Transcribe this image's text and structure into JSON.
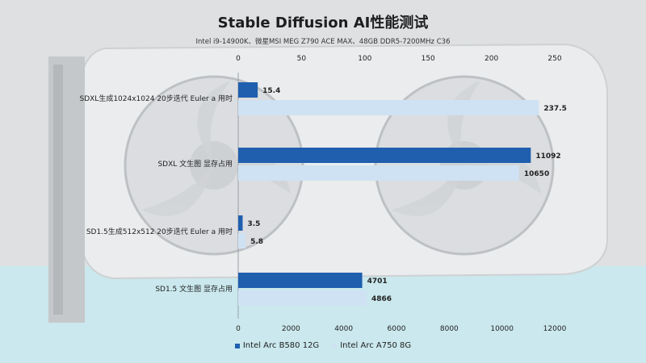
{
  "colors": {
    "b580": "#1f5fae",
    "a750": "#cfe2f3"
  },
  "chart_data": {
    "type": "bar",
    "orientation": "horizontal",
    "title": "Stable Diffusion AI性能测试",
    "subtitle": "Intel i9-14900K、微星MSI  MEG Z790 ACE MAX、48GB DDR5-7200MHz  C36",
    "categories": [
      "SDXL生成1024x1024 20步迭代 Euler a 用时",
      "SDXL 文生图 显存占用",
      "SD1.5生成512x512 20步迭代 Euler a 用时",
      "SD1.5 文生图 显存占用"
    ],
    "series": [
      {
        "name": "Intel Arc B580 12G",
        "values": [
          15.4,
          11092,
          3.5,
          4701
        ]
      },
      {
        "name": "Intel Arc A750 8G",
        "values": [
          237.5,
          10650,
          5.8,
          4866
        ]
      }
    ],
    "top_axis": {
      "range": [
        0,
        250
      ],
      "ticks": [
        0,
        50,
        100,
        150,
        200,
        250
      ],
      "applies_to_categories": [
        0,
        2
      ]
    },
    "bottom_axis": {
      "range": [
        0,
        12000
      ],
      "ticks": [
        0,
        2000,
        4000,
        6000,
        8000,
        10000,
        12000
      ],
      "applies_to_categories": [
        1,
        3
      ]
    },
    "legend_position": "bottom-center",
    "grid": false
  }
}
